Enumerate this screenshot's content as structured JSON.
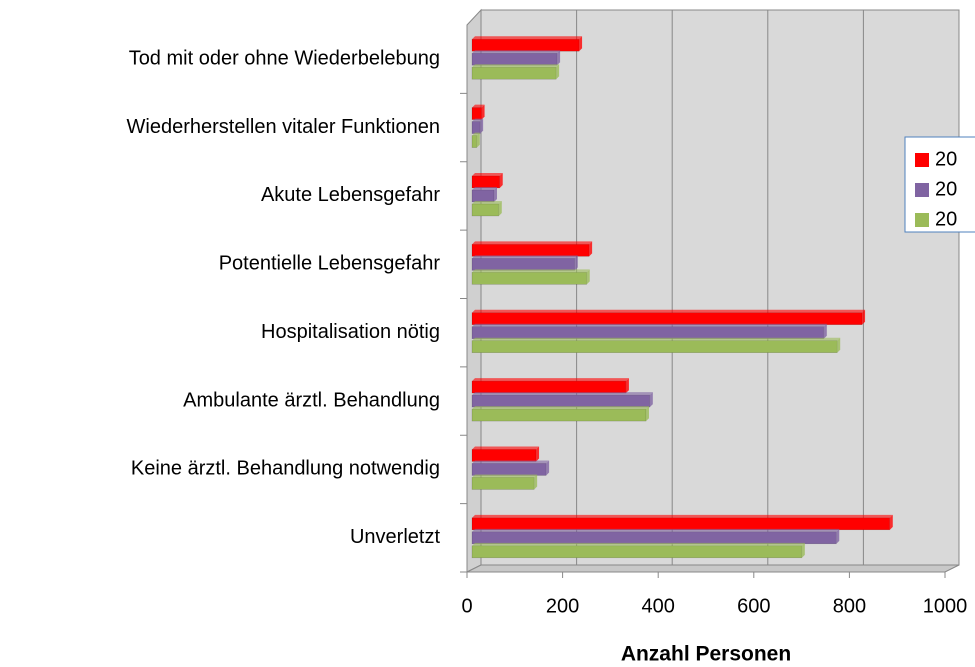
{
  "chart_data": {
    "type": "bar",
    "orientation": "horizontal",
    "title_x": "Anzahl Personen",
    "categories": [
      "Unverletzt",
      "Keine ärztl. Behandlung notwendig",
      "Ambulante ärztl. Behandlung",
      "Hospitalisation nötig",
      "Potentielle Lebensgefahr",
      "Akute Lebensgefahr",
      "Wiederherstellen vitaler Funktionen",
      "Tod mit oder ohne Wiederbelebung"
    ],
    "series": [
      {
        "name": "20",
        "color": "#ff0000",
        "values": [
          874,
          134,
          322,
          816,
          245,
          58,
          20,
          224
        ]
      },
      {
        "name": "20",
        "color": "#8064a2",
        "values": [
          762,
          155,
          372,
          736,
          215,
          46,
          17,
          178
        ]
      },
      {
        "name": "20",
        "color": "#9bbb59",
        "values": [
          690,
          130,
          364,
          764,
          240,
          56,
          10,
          176
        ]
      }
    ],
    "xlim": [
      0,
      1000
    ],
    "xticks": [
      0,
      200,
      400,
      600,
      800,
      1000
    ],
    "grid": true
  }
}
